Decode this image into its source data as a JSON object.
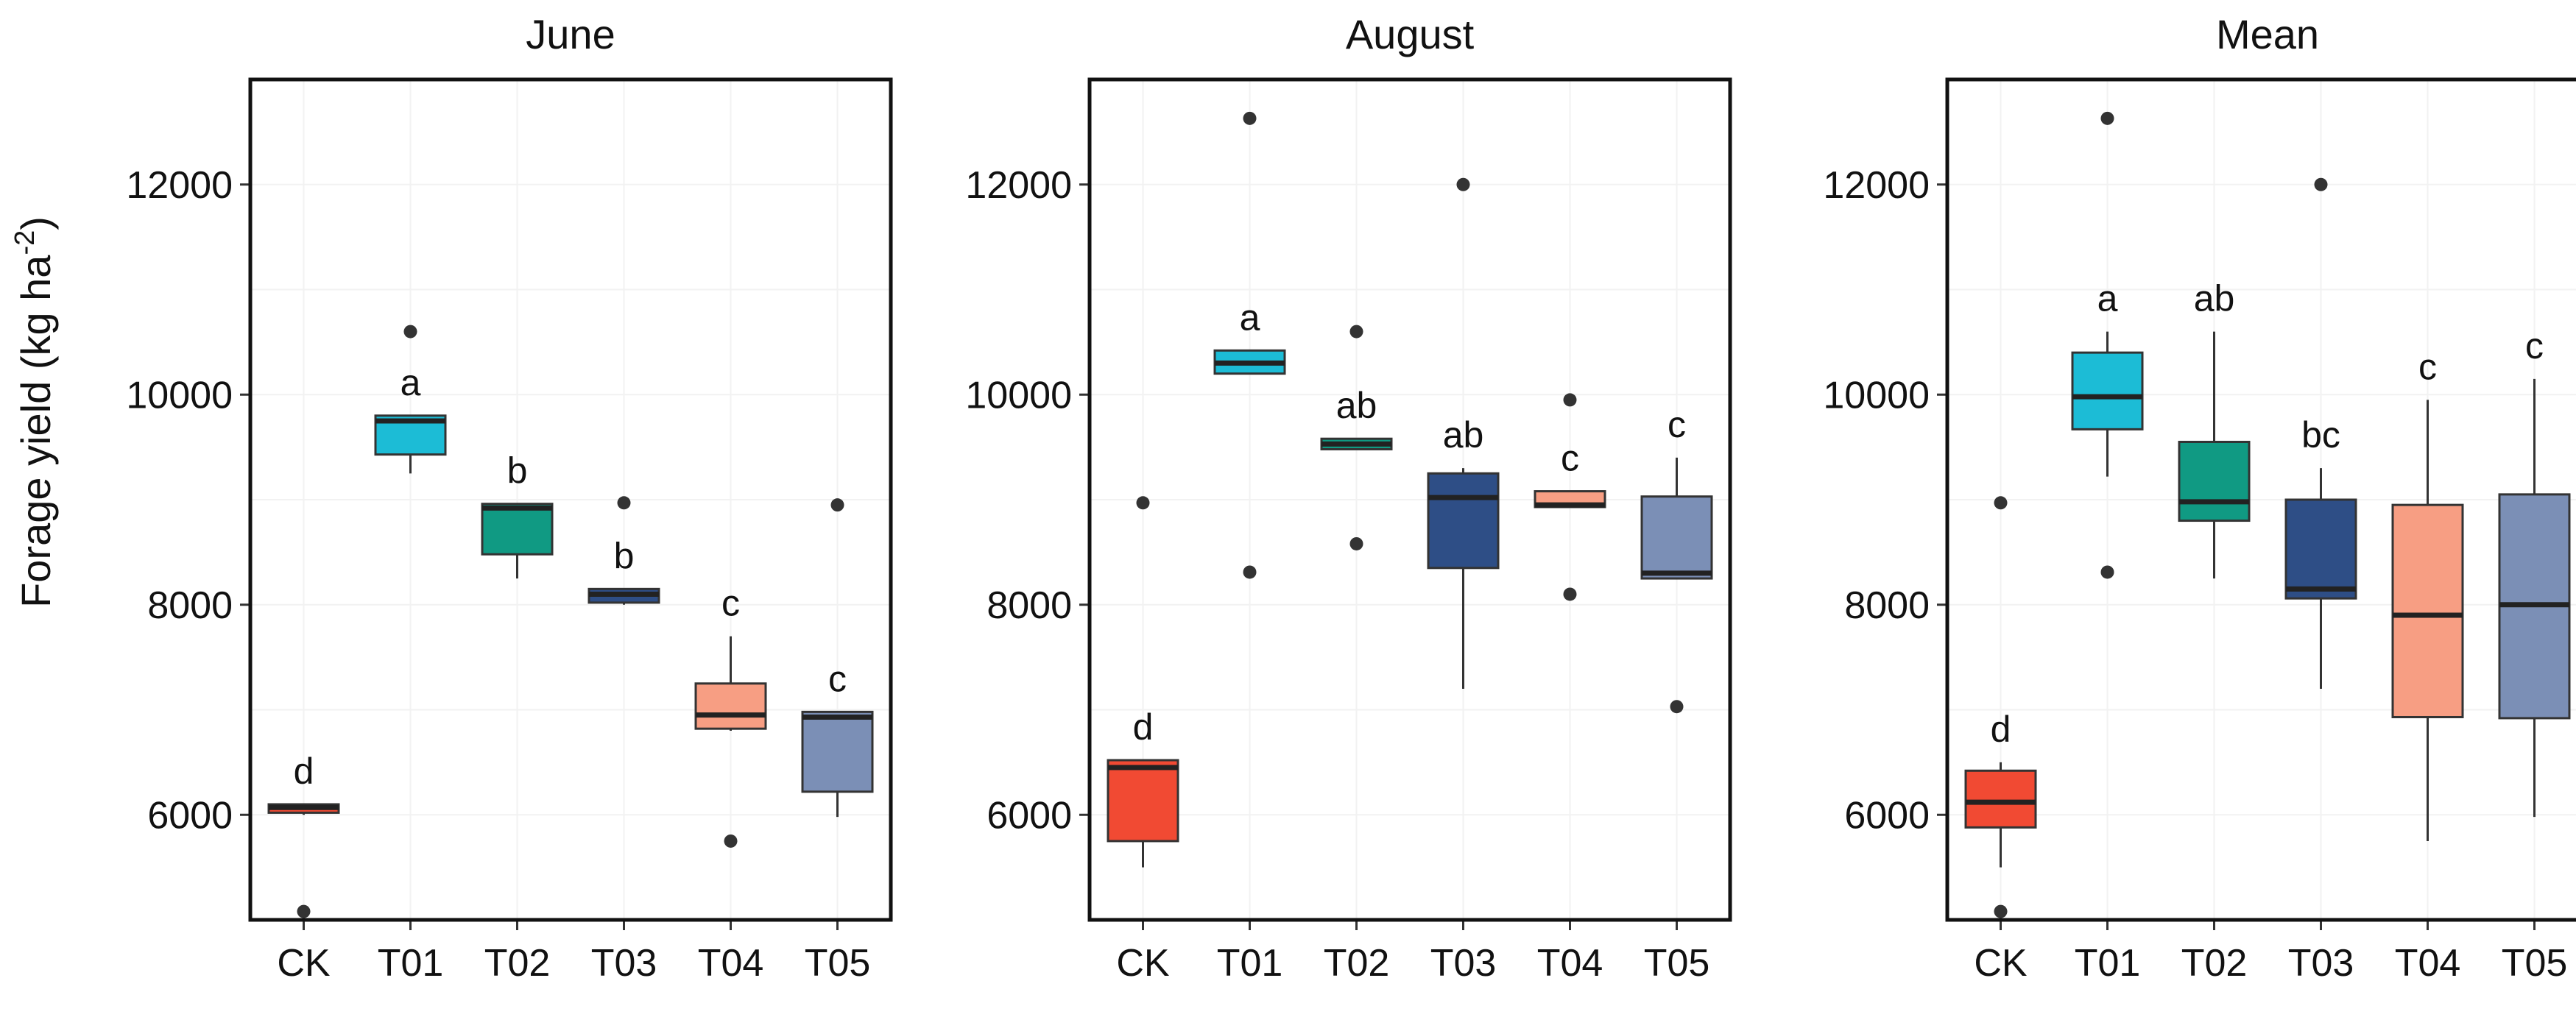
{
  "chart_data": {
    "type": "box",
    "ylabel": "Forage yield (kg ha-2)",
    "ylabel_parts": {
      "main": "Forage yield (kg ha",
      "sup": "-2",
      "close": ")"
    },
    "ylim": [
      5000,
      13000
    ],
    "yticks": [
      6000,
      8000,
      10000,
      12000
    ],
    "categories": [
      "CK",
      "T01",
      "T02",
      "T03",
      "T04",
      "T05"
    ],
    "colors": [
      "#F14A33",
      "#1CBCD6",
      "#109A83",
      "#2E4E86",
      "#F79E83",
      "#7B8FB6"
    ],
    "panels": [
      {
        "title": "June",
        "boxes": [
          {
            "category": "CK",
            "whisker_low": 6000,
            "q1": 6020,
            "median": 6070,
            "q3": 6100,
            "whisker_high": 6100,
            "outliers": [
              5080
            ],
            "letter": "d"
          },
          {
            "category": "T01",
            "whisker_low": 9250,
            "q1": 9430,
            "median": 9750,
            "q3": 9800,
            "whisker_high": 9800,
            "outliers": [
              10600
            ],
            "letter": "a"
          },
          {
            "category": "T02",
            "whisker_low": 8250,
            "q1": 8480,
            "median": 8920,
            "q3": 8960,
            "whisker_high": 8960,
            "outliers": [],
            "letter": "b"
          },
          {
            "category": "T03",
            "whisker_low": 8000,
            "q1": 8020,
            "median": 8100,
            "q3": 8150,
            "whisker_high": 8150,
            "outliers": [
              8970
            ],
            "letter": "b"
          },
          {
            "category": "T04",
            "whisker_low": 6800,
            "q1": 6820,
            "median": 6950,
            "q3": 7250,
            "whisker_high": 7700,
            "outliers": [
              5750
            ],
            "letter": "c"
          },
          {
            "category": "T05",
            "whisker_low": 5980,
            "q1": 6220,
            "median": 6930,
            "q3": 6980,
            "whisker_high": 6980,
            "outliers": [
              8950
            ],
            "letter": "c"
          }
        ]
      },
      {
        "title": "August",
        "boxes": [
          {
            "category": "CK",
            "whisker_low": 5500,
            "q1": 5750,
            "median": 6450,
            "q3": 6520,
            "whisker_high": 6520,
            "outliers": [
              8970
            ],
            "letter": "d"
          },
          {
            "category": "T01",
            "whisker_low": 10200,
            "q1": 10200,
            "median": 10300,
            "q3": 10420,
            "whisker_high": 10420,
            "outliers": [
              12630,
              8310
            ],
            "letter": "a"
          },
          {
            "category": "T02",
            "whisker_low": 9480,
            "q1": 9480,
            "median": 9530,
            "q3": 9580,
            "whisker_high": 9580,
            "outliers": [
              10600,
              8580
            ],
            "letter": "ab"
          },
          {
            "category": "T03",
            "whisker_low": 7200,
            "q1": 8350,
            "median": 9020,
            "q3": 9250,
            "whisker_high": 9300,
            "outliers": [
              12000
            ],
            "letter": "ab"
          },
          {
            "category": "T04",
            "whisker_low": 8930,
            "q1": 8930,
            "median": 8950,
            "q3": 9080,
            "whisker_high": 9080,
            "outliers": [
              9950,
              8100
            ],
            "letter": "c"
          },
          {
            "category": "T05",
            "whisker_low": 8250,
            "q1": 8250,
            "median": 8300,
            "q3": 9030,
            "whisker_high": 9400,
            "outliers": [
              7030
            ],
            "letter": "c"
          }
        ]
      },
      {
        "title": "Mean",
        "boxes": [
          {
            "category": "CK",
            "whisker_low": 5500,
            "q1": 5880,
            "median": 6120,
            "q3": 6420,
            "whisker_high": 6500,
            "outliers": [
              8970,
              5080
            ],
            "letter": "d"
          },
          {
            "category": "T01",
            "whisker_low": 9220,
            "q1": 9670,
            "median": 9980,
            "q3": 10400,
            "whisker_high": 10600,
            "outliers": [
              12630,
              8310
            ],
            "letter": "a"
          },
          {
            "category": "T02",
            "whisker_low": 8250,
            "q1": 8800,
            "median": 8980,
            "q3": 9550,
            "whisker_high": 10600,
            "outliers": [],
            "letter": "ab"
          },
          {
            "category": "T03",
            "whisker_low": 7200,
            "q1": 8060,
            "median": 8150,
            "q3": 9000,
            "whisker_high": 9300,
            "outliers": [
              12000
            ],
            "letter": "bc"
          },
          {
            "category": "T04",
            "whisker_low": 5750,
            "q1": 6930,
            "median": 7900,
            "q3": 8950,
            "whisker_high": 9950,
            "outliers": [],
            "letter": "c"
          },
          {
            "category": "T05",
            "whisker_low": 5980,
            "q1": 6920,
            "median": 8000,
            "q3": 9050,
            "whisker_high": 10150,
            "outliers": [],
            "letter": "c"
          }
        ]
      }
    ]
  }
}
